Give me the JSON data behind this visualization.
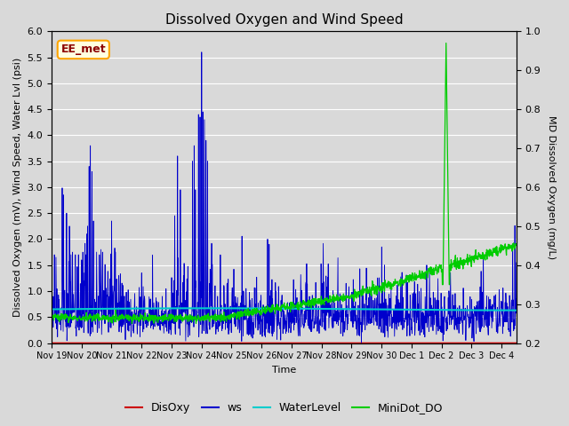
{
  "title": "Dissolved Oxygen and Wind Speed",
  "xlabel": "Time",
  "ylabel_left": "Dissolved Oxygen (mV), Wind Speed, Water Lvl (psi)",
  "ylabel_right": "MD Dissolved Oxygen (mg/L)",
  "ylim_left": [
    0.0,
    6.0
  ],
  "ylim_right": [
    0.2,
    1.0
  ],
  "xlim_start": 0,
  "xlim_end": 15.5,
  "x_tick_labels": [
    "Nov 19",
    "Nov 20",
    "Nov 21",
    "Nov 22",
    "Nov 23",
    "Nov 24",
    "Nov 25",
    "Nov 26",
    "Nov 27",
    "Nov 28",
    "Nov 29",
    "Nov 30",
    "Dec 1",
    "Dec 2",
    "Dec 3",
    "Dec 4"
  ],
  "x_tick_positions": [
    0,
    1,
    2,
    3,
    4,
    5,
    6,
    7,
    8,
    9,
    10,
    11,
    12,
    13,
    14,
    15
  ],
  "annotation_text": "EE_met",
  "background_color": "#d9d9d9",
  "plot_bg_color": "#d9d9d9",
  "grid_color": "#ffffff",
  "legend_entries": [
    "DisOxy",
    "ws",
    "WaterLevel",
    "MiniDot_DO"
  ],
  "disoxy_color": "#cc0000",
  "ws_color": "#0000cc",
  "waterlevel_color": "#00cccc",
  "minidot_color": "#00cc00",
  "title_fontsize": 11,
  "label_fontsize": 8,
  "tick_fontsize": 8,
  "xtick_fontsize": 7,
  "legend_fontsize": 9,
  "annotation_fontsize": 9,
  "left_ytick_step": 0.5,
  "right_ytick_step": 0.1,
  "waterlevel_value": 0.65,
  "ws_seed": 42,
  "n_pts_per_day": 96
}
